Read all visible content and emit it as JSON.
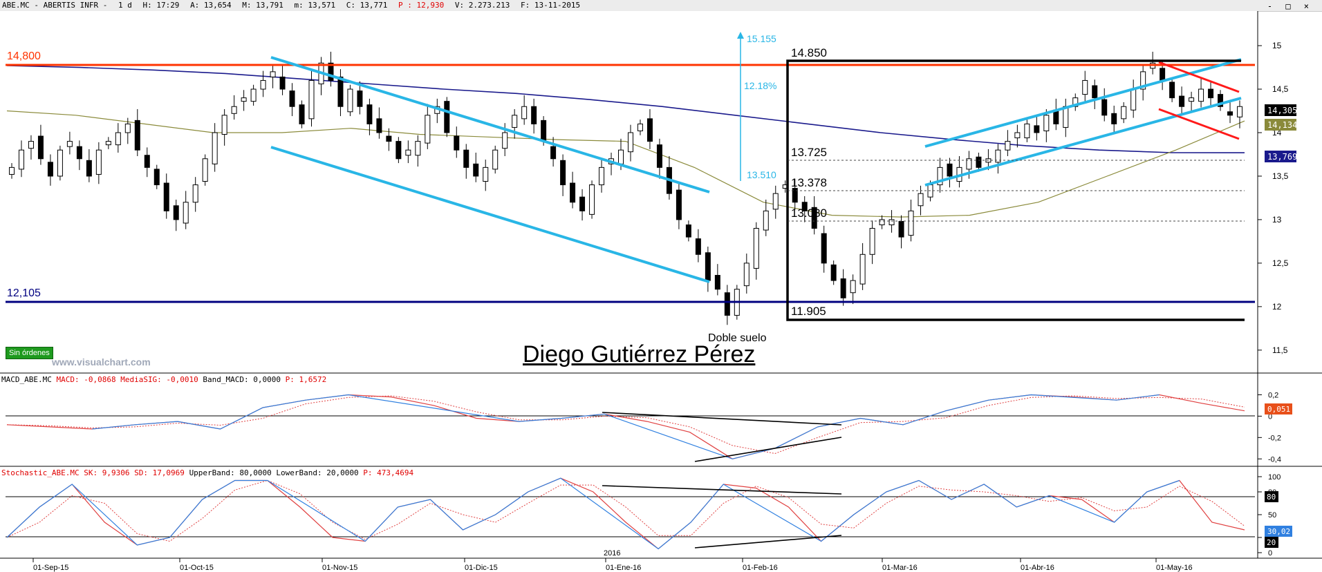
{
  "header": {
    "symbol": "ABE.MC - ABERTIS INFR -",
    "period": "1 d",
    "hour": "H: 17:29",
    "open": "A: 13,654",
    "high": "M: 13,791",
    "low": "m: 13,571",
    "close": "C: 13,771",
    "p_value": "P : 12,930",
    "volume": "V: 2.273.213",
    "date": "F: 13-11-2015"
  },
  "window_controls": "- □ ×",
  "badge": "Sin órdenes",
  "watermark": "www.visualchart.com",
  "author": "Diego Gutiérrez Pérez",
  "annotations": {
    "resistance": "14,800",
    "support": "12,105",
    "box_top": "14.850",
    "box_bottom": "11.905",
    "level_1": "13.725",
    "level_2": "13.378",
    "level_3": "13.030",
    "target": "15.155",
    "start": "13.510",
    "percent": "12.18%",
    "double_bottom": "Doble suelo"
  },
  "price_tags": {
    "last": "14,305",
    "ma_short": "14,134",
    "ma_long": "13,769"
  },
  "macd": {
    "header_name": "MACD_ABE.MC",
    "macd_label": "MACD: -0,0868",
    "signal_label": "MediaSIG: -0,0010",
    "band_label": "Band_MACD: 0,0000",
    "p_label": "P: 1,6572",
    "tag": "0,051",
    "yticks": [
      "0,2",
      "0",
      "-0,2",
      "-0,4"
    ]
  },
  "stochastic": {
    "header_name": "Stochastic_ABE.MC",
    "sk_label": "SK: 9,9306",
    "sd_label": "SD: 17,0969",
    "upper_label": "UpperBand: 80,0000",
    "lower_label": "LowerBand: 20,0000",
    "p_label": "P: 473,4694",
    "tag_upper": "80",
    "tag_lower": "20",
    "tag_value": "30,02",
    "yticks": [
      "100",
      "80",
      "50",
      "20",
      "0"
    ]
  },
  "chart_data": {
    "type": "candlestick",
    "y_ticks": [
      "15",
      "14,5",
      "14",
      "13,5",
      "13",
      "12,5",
      "12",
      "11,5"
    ],
    "ylim": [
      11.3,
      15.35
    ],
    "x_labels": [
      "01-Sep-15",
      "01-Oct-15",
      "01-Nov-15",
      "01-Dic-15",
      "01-Ene-16",
      "01-Feb-16",
      "01-Mar-16",
      "01-Abr-16",
      "01-May-16"
    ],
    "year_marker": "2016",
    "series_colors": {
      "up": "#ffffff",
      "down": "#000000",
      "ma_long": "#1a1a8c",
      "ma_short": "#8a8a3a",
      "channel": "#29b6e6",
      "resistance": "#ff3300",
      "support": "#000080"
    },
    "close_path": [
      13.6,
      13.8,
      13.9,
      13.7,
      13.5,
      13.8,
      13.9,
      13.7,
      13.5,
      13.8,
      13.9,
      14.0,
      14.1,
      13.8,
      13.6,
      13.4,
      13.1,
      13.0,
      13.2,
      13.4,
      13.7,
      14.0,
      14.2,
      14.3,
      14.4,
      14.5,
      14.6,
      14.7,
      14.5,
      14.3,
      14.1,
      14.6,
      14.8,
      14.6,
      14.3,
      14.5,
      14.3,
      14.1,
      14.0,
      13.9,
      13.7,
      13.8,
      13.9,
      14.2,
      14.3,
      14.0,
      13.8,
      13.6,
      13.5,
      13.6,
      13.8,
      14.0,
      14.2,
      14.3,
      14.1,
      13.9,
      13.7,
      13.4,
      13.2,
      13.1,
      13.4,
      13.6,
      13.7,
      13.8,
      14.0,
      14.1,
      13.9,
      13.6,
      13.3,
      13.0,
      12.8,
      12.6,
      12.3,
      12.2,
      11.9,
      12.2,
      12.5,
      12.9,
      13.1,
      13.3,
      13.4,
      13.2,
      13.1,
      12.9,
      12.5,
      12.3,
      12.1,
      12.3,
      12.6,
      12.9,
      13.0,
      13.0,
      12.8,
      13.1,
      13.3,
      13.4,
      13.6,
      13.5,
      13.6,
      13.7,
      13.6,
      13.7,
      13.8,
      13.9,
      14.0,
      14.1,
      14.0,
      14.2,
      14.1,
      14.3,
      14.4,
      14.6,
      14.4,
      14.2,
      14.1,
      14.3,
      14.5,
      14.7,
      14.8,
      14.6,
      14.4,
      14.3,
      14.4,
      14.5,
      14.4,
      14.3,
      14.2,
      14.3
    ],
    "ma_long_path": [
      14.77,
      14.75,
      14.72,
      14.68,
      14.62,
      14.56,
      14.5,
      14.45,
      14.38,
      14.3,
      14.2,
      14.1,
      14.0,
      13.92,
      13.85,
      13.8,
      13.77,
      13.769
    ],
    "ma_short_path": [
      14.25,
      14.2,
      14.1,
      14.0,
      14.0,
      14.05,
      13.98,
      13.95,
      13.92,
      13.9,
      13.6,
      13.2,
      13.05,
      13.03,
      13.05,
      13.2,
      13.5,
      13.8,
      14.134
    ],
    "macd_values": [
      -0.08,
      -0.1,
      -0.12,
      -0.08,
      -0.05,
      -0.12,
      0.08,
      0.15,
      0.2,
      0.18,
      0.1,
      -0.02,
      -0.05,
      -0.02,
      0.02,
      -0.05,
      -0.15,
      -0.4,
      -0.3,
      -0.1,
      -0.02,
      -0.08,
      0.05,
      0.15,
      0.2,
      0.18,
      0.15,
      0.2,
      0.12,
      0.05
    ],
    "stoch_values": [
      20,
      60,
      90,
      40,
      10,
      20,
      70,
      95,
      95,
      60,
      20,
      15,
      60,
      70,
      30,
      50,
      80,
      98,
      80,
      40,
      5,
      40,
      90,
      85,
      60,
      15,
      50,
      80,
      95,
      70,
      90,
      60,
      75,
      70,
      40,
      80,
      95,
      40,
      30
    ]
  }
}
